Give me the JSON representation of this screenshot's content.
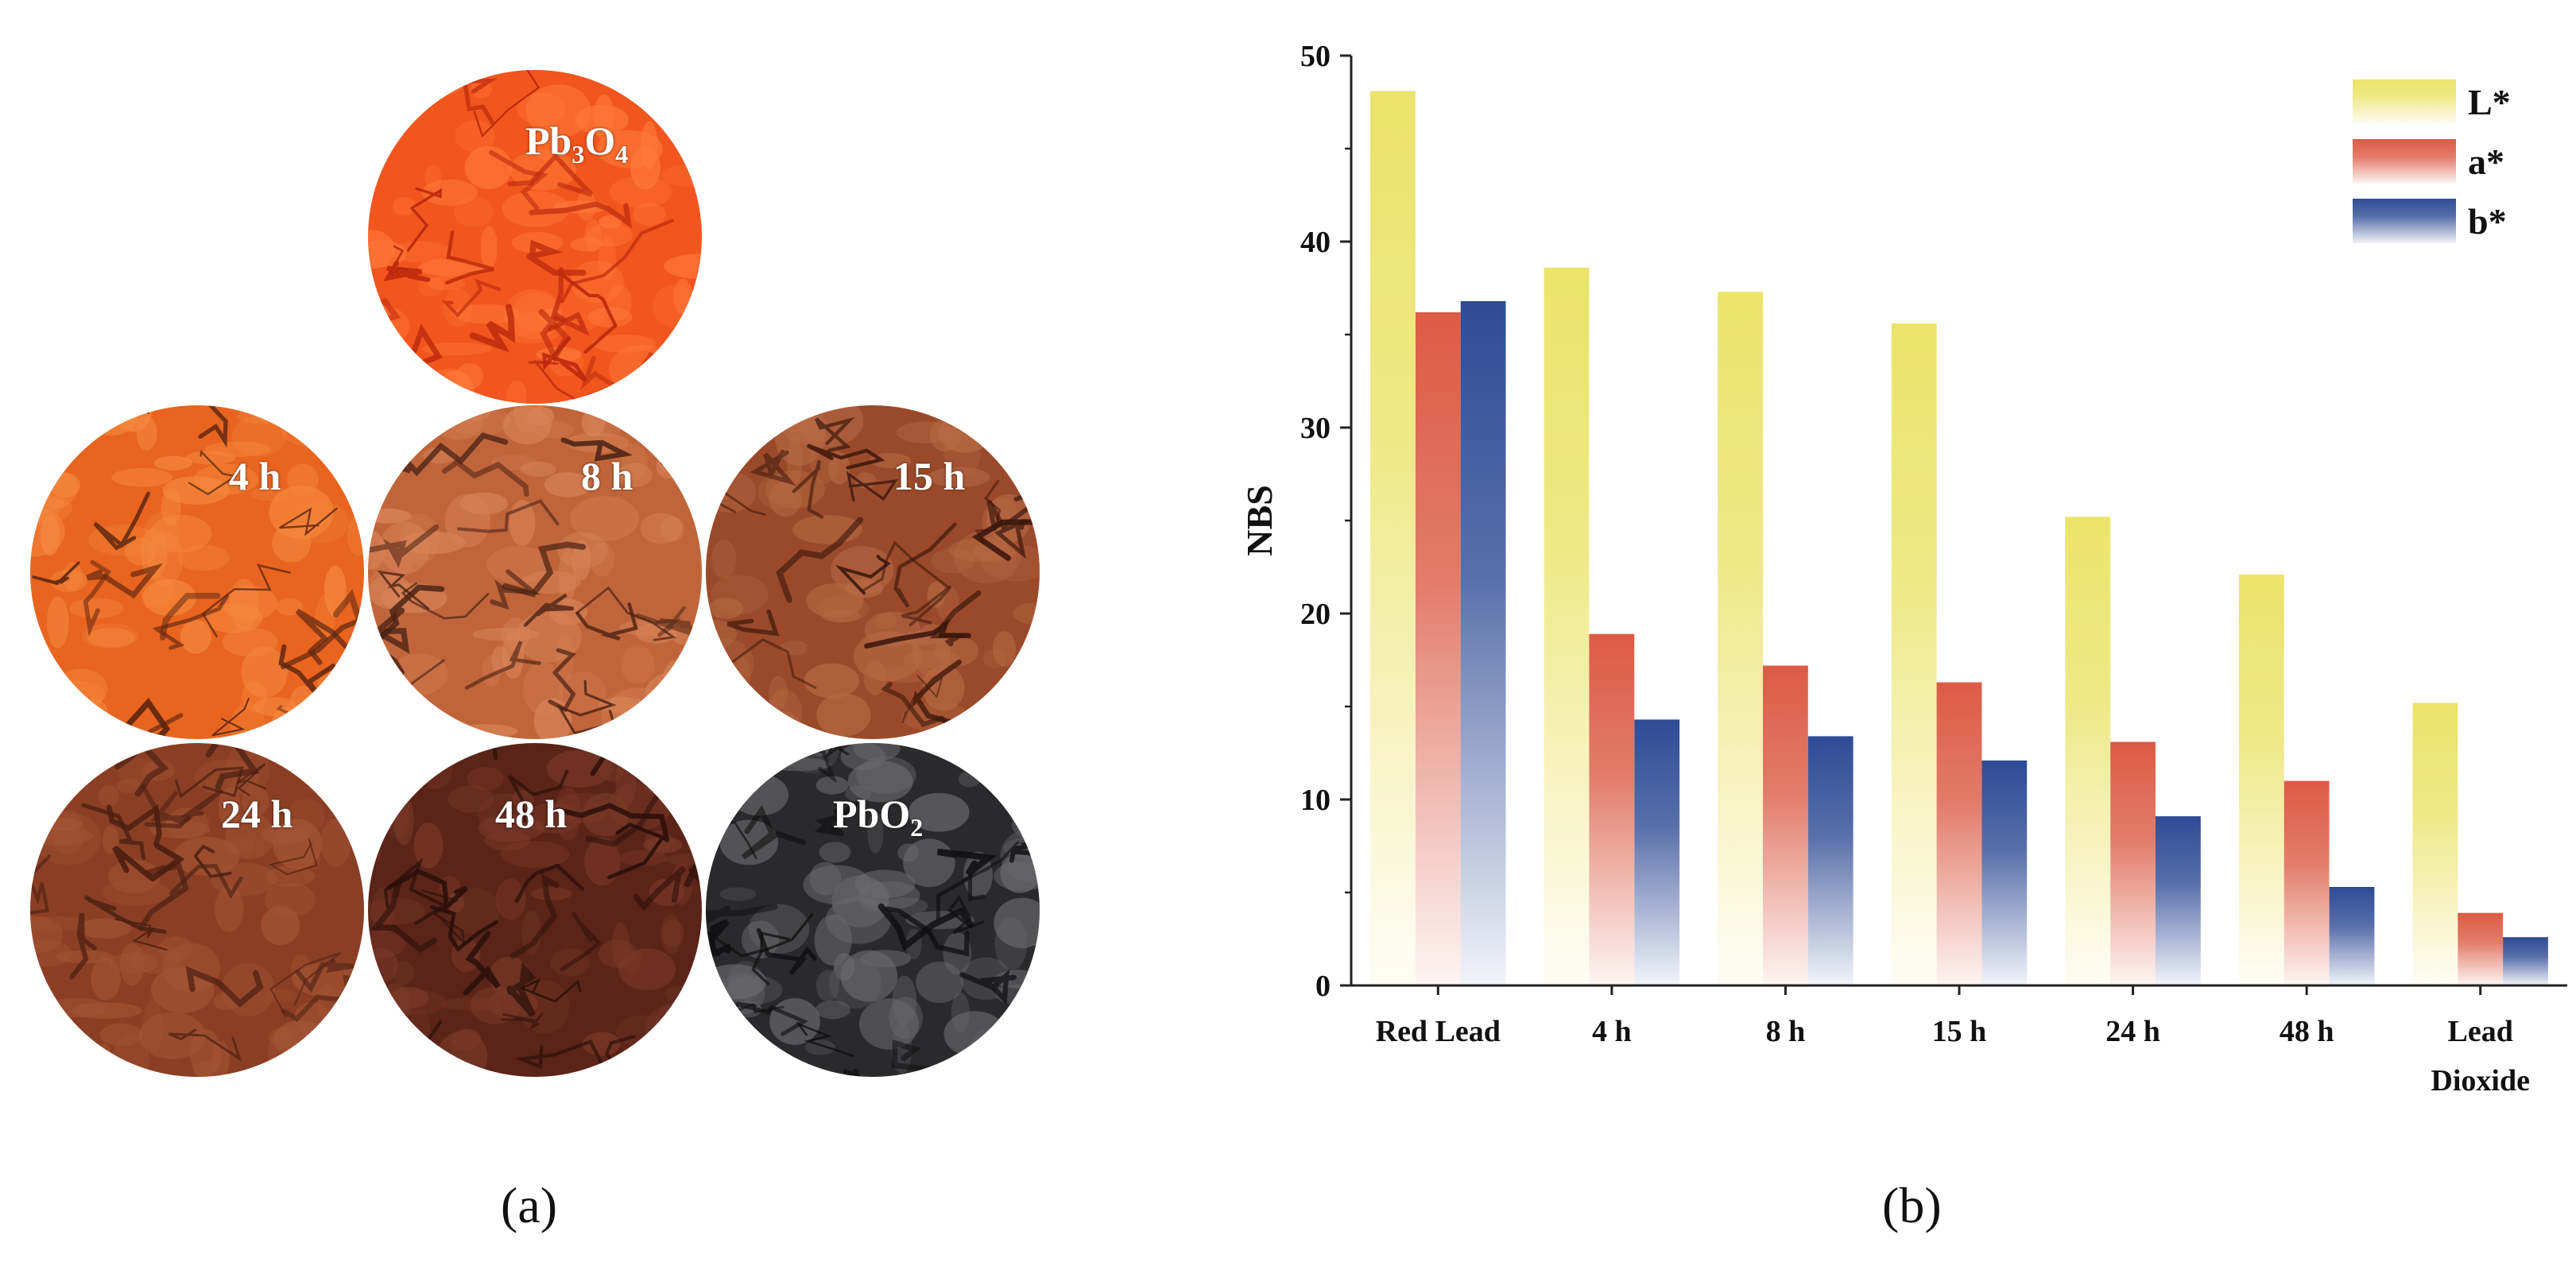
{
  "panel_a": {
    "caption": "(a)",
    "samples": [
      {
        "id": "pb3o4",
        "label_main": "Pb",
        "label_sub1": "3",
        "label_mid": "O",
        "label_sub2": "4",
        "base_color": "#f2551d",
        "dark_color": "#b8260c",
        "light_color": "#ff7a3a"
      },
      {
        "id": "4h",
        "label": "4 h",
        "base_color": "#e8641f",
        "dark_color": "#5a2410",
        "light_color": "#f58a3e"
      },
      {
        "id": "8h",
        "label": "8 h",
        "base_color": "#c0653a",
        "dark_color": "#4a2214",
        "light_color": "#d98459"
      },
      {
        "id": "15h",
        "label": "15 h",
        "base_color": "#9a4a2a",
        "dark_color": "#3a160b",
        "light_color": "#b86a45"
      },
      {
        "id": "24h",
        "label": "24 h",
        "base_color": "#8a3f24",
        "dark_color": "#4a1e10",
        "light_color": "#a55535"
      },
      {
        "id": "48h",
        "label": "48 h",
        "base_color": "#5a2418",
        "dark_color": "#2a0f09",
        "light_color": "#7a3a2a"
      },
      {
        "id": "pbo2",
        "label_main": "PbO",
        "label_sub": "2",
        "base_color": "#2a2a2c",
        "dark_color": "#0e0e10",
        "light_color": "#6a6a6e"
      }
    ]
  },
  "panel_b": {
    "caption": "(b)"
  },
  "chart_data": {
    "type": "bar",
    "title": "",
    "xlabel": "",
    "ylabel": "NBS",
    "ylim": [
      0,
      50
    ],
    "yticks": [
      0,
      10,
      20,
      30,
      40,
      50
    ],
    "categories": [
      "Red Lead",
      "4 h",
      "8 h",
      "15 h",
      "24 h",
      "48 h",
      "Lead Dioxide"
    ],
    "category_lines": [
      [
        "Red Lead"
      ],
      [
        "4 h"
      ],
      [
        "8 h"
      ],
      [
        "15 h"
      ],
      [
        "24 h"
      ],
      [
        "48 h"
      ],
      [
        "Lead",
        "Dioxide"
      ]
    ],
    "legend_position": "top-right",
    "series": [
      {
        "name": "L*",
        "color": "#ebe36a",
        "values": [
          48.1,
          38.6,
          37.3,
          35.6,
          25.2,
          22.1,
          15.2
        ]
      },
      {
        "name": "a*",
        "color": "#dc5b45",
        "values": [
          36.2,
          18.9,
          17.2,
          16.3,
          13.1,
          11.0,
          3.9
        ]
      },
      {
        "name": "b*",
        "color": "#2f4b95",
        "values": [
          36.8,
          14.3,
          13.4,
          12.1,
          9.1,
          5.3,
          2.6
        ]
      }
    ]
  }
}
